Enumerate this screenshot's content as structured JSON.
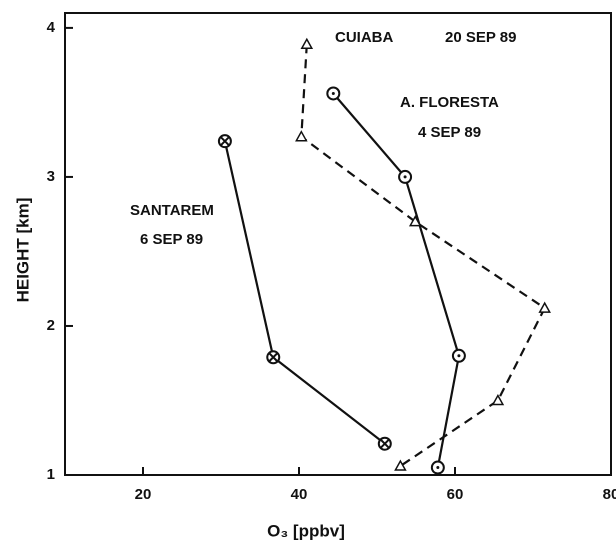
{
  "chart_data": {
    "type": "line",
    "xlabel": "O₃ [ppbv]",
    "ylabel": "HEIGHT [km]",
    "xlim": [
      10,
      80
    ],
    "ylim": [
      1,
      4.1
    ],
    "xticks": [
      20,
      40,
      60,
      80
    ],
    "yticks": [
      1,
      2,
      3,
      4
    ],
    "color": "#111111",
    "series": [
      {
        "name": "SANTAREM",
        "date": "6 SEP 89",
        "marker": "circle-x",
        "dash": false,
        "x": [
          30.5,
          36.7,
          51
        ],
        "values": [
          3.24,
          1.79,
          1.21
        ]
      },
      {
        "name": "A. FLORESTA",
        "date": "4 SEP 89",
        "marker": "circle",
        "dash": false,
        "x": [
          44.4,
          53.6,
          60.5,
          57.8
        ],
        "values": [
          3.56,
          3.0,
          1.8,
          1.05
        ]
      },
      {
        "name": "CUIABA",
        "date": "20 SEP 89",
        "marker": "triangle",
        "dash": true,
        "x": [
          41,
          40.3,
          54.9,
          71.5,
          65.5,
          53
        ],
        "values": [
          3.89,
          3.27,
          2.7,
          2.12,
          1.5,
          1.06
        ]
      }
    ]
  }
}
